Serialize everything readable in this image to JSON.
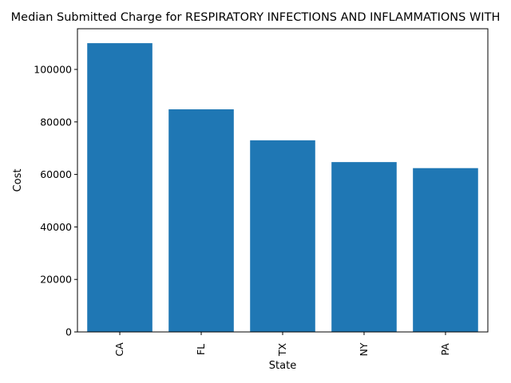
{
  "chart_data": {
    "type": "bar",
    "title": "Median Submitted Charge for RESPIRATORY INFECTIONS AND INFLAMMATIONS WITH",
    "xlabel": "State",
    "ylabel": "Cost",
    "categories": [
      "CA",
      "FL",
      "TX",
      "NY",
      "PA"
    ],
    "values": [
      110000,
      84800,
      73000,
      64700,
      62400
    ],
    "ylim": [
      0,
      115500
    ],
    "yticks": [
      0,
      20000,
      40000,
      60000,
      80000,
      100000
    ],
    "bar_color": "#1f77b4",
    "grid": false,
    "legend": "none"
  }
}
